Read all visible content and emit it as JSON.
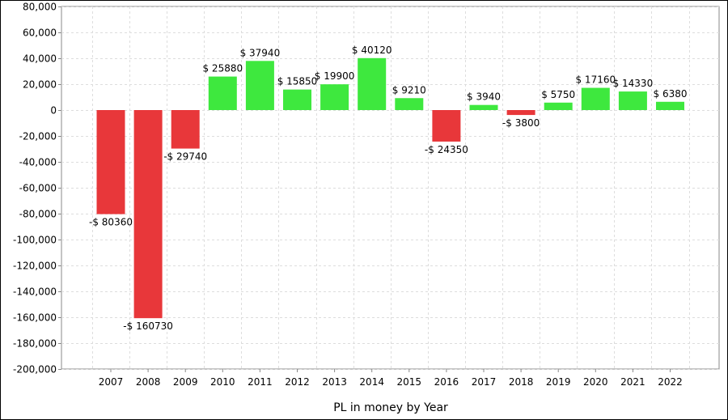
{
  "chart_data": {
    "type": "bar",
    "title": "",
    "xlabel": "PL in money by Year",
    "ylabel": "",
    "categories": [
      "2007",
      "2008",
      "2009",
      "2010",
      "2011",
      "2012",
      "2013",
      "2014",
      "2015",
      "2016",
      "2017",
      "2018",
      "2019",
      "2020",
      "2021",
      "2022"
    ],
    "values": [
      -80360,
      -160730,
      -29740,
      25880,
      37940,
      15850,
      19900,
      40120,
      9210,
      -24350,
      3940,
      -3800,
      5750,
      17160,
      14330,
      6380
    ],
    "data_labels": [
      "-$ 80360",
      "-$ 160730",
      "-$ 29740",
      "$ 25880",
      "$ 37940",
      "$ 15850",
      "$ 19900",
      "$ 40120",
      "$ 9210",
      "-$ 24350",
      "$ 3940",
      "-$ 3800",
      "$ 5750",
      "$ 17160",
      "$ 14330",
      "$ 6380"
    ],
    "ylim": [
      -200000,
      80000
    ],
    "yticks": [
      80000,
      60000,
      40000,
      20000,
      0,
      -20000,
      -40000,
      -60000,
      -80000,
      -100000,
      -120000,
      -140000,
      -160000,
      -180000,
      -200000
    ],
    "ytick_labels": [
      "80,000",
      "60,000",
      "40,000",
      "20,000",
      "0",
      "-20,000",
      "-40,000",
      "-60,000",
      "-80,000",
      "-100,000",
      "-120,000",
      "-140,000",
      "-160,000",
      "-180,000",
      "-200,000"
    ],
    "grid": true,
    "legend": "none",
    "colors": {
      "positive": "#3ee83e",
      "negative": "#e8373a",
      "grid": "#dddddd",
      "axis": "#888888"
    }
  }
}
